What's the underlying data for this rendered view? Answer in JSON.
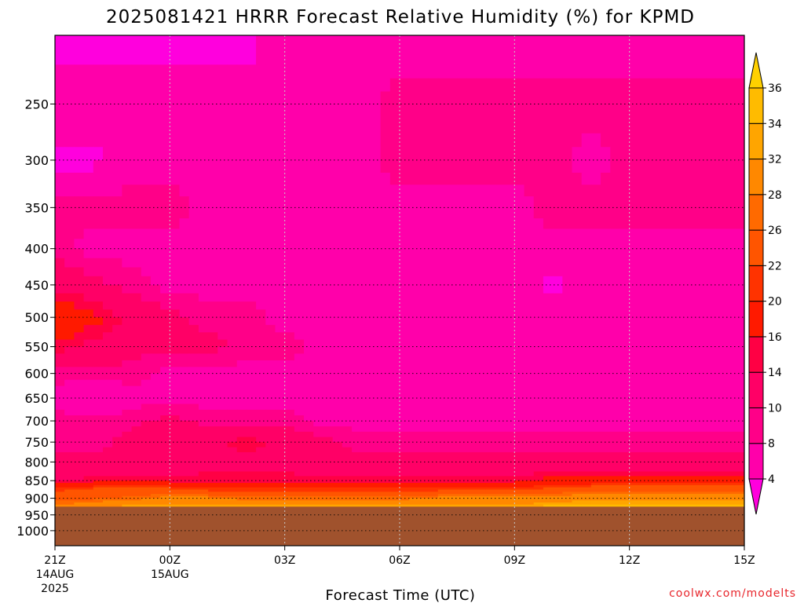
{
  "chart_data": {
    "type": "heatmap",
    "title": "2025081421 HRRR Forecast Relative Humidity (%) for KPMD",
    "xlabel": "Forecast Time (UTC)",
    "ylabel": "",
    "y_axis": {
      "scale": "log",
      "reversed": true,
      "range": [
        1050,
        200
      ],
      "ticks": [
        250,
        300,
        350,
        400,
        450,
        500,
        550,
        600,
        650,
        700,
        750,
        800,
        850,
        900,
        950,
        1000
      ]
    },
    "x_axis": {
      "range": [
        0,
        18
      ],
      "ticks": [
        {
          "x": 0,
          "label": "21Z",
          "label2": "14AUG",
          "label3": "2025"
        },
        {
          "x": 3,
          "label": "00Z",
          "label2": "15AUG",
          "label3": ""
        },
        {
          "x": 6,
          "label": "03Z",
          "label2": "",
          "label3": ""
        },
        {
          "x": 9,
          "label": "06Z",
          "label2": "",
          "label3": ""
        },
        {
          "x": 12,
          "label": "09Z",
          "label2": "",
          "label3": ""
        },
        {
          "x": 15,
          "label": "12Z",
          "label2": "",
          "label3": ""
        },
        {
          "x": 18,
          "label": "15Z",
          "label2": "",
          "label3": ""
        }
      ]
    },
    "grid": "dotted",
    "underground_below_hpa": 925,
    "underground_color": "#a0522d",
    "colorbar": {
      "levels": [
        4,
        8,
        10,
        14,
        16,
        20,
        22,
        26,
        28,
        32,
        34,
        36
      ],
      "colors": [
        "#ff00dd",
        "#ff00aa",
        "#ff0088",
        "#ff0066",
        "#ff0044",
        "#ff1a00",
        "#ff3300",
        "#ff5500",
        "#ff6a00",
        "#ff8800",
        "#ffa500",
        "#ffbb00",
        "#ffd000"
      ],
      "extend": "both"
    },
    "field": {
      "forecast_hours": [
        0,
        1,
        2,
        3,
        4,
        5,
        6,
        7,
        8,
        9,
        10,
        11,
        12,
        13,
        14,
        15,
        16,
        17,
        18
      ],
      "pressure_levels": [
        210,
        250,
        300,
        350,
        400,
        450,
        500,
        550,
        600,
        650,
        700,
        750,
        800,
        850,
        875,
        900,
        925
      ],
      "rh": [
        [
          3,
          3,
          3,
          3,
          3,
          3,
          7,
          7,
          7,
          7,
          7,
          7,
          7,
          7,
          7,
          7,
          7,
          7,
          7
        ],
        [
          7,
          7,
          7,
          7,
          7,
          7,
          7,
          7,
          7,
          9,
          9,
          9,
          9,
          9,
          9,
          9,
          9,
          9,
          9
        ],
        [
          3,
          3,
          7,
          7,
          7,
          7,
          7,
          7,
          7,
          9,
          9,
          9,
          9,
          9,
          7,
          9,
          9,
          9,
          9
        ],
        [
          9,
          9,
          9,
          9,
          7,
          7,
          7,
          7,
          7,
          7,
          7,
          7,
          7,
          9,
          9,
          9,
          9,
          9,
          9
        ],
        [
          9,
          7,
          7,
          7,
          7,
          7,
          7,
          7,
          7,
          7,
          7,
          7,
          7,
          7,
          7,
          7,
          7,
          7,
          7
        ],
        [
          13,
          11,
          9,
          7,
          7,
          7,
          7,
          7,
          7,
          7,
          7,
          7,
          7,
          3,
          7,
          7,
          7,
          7,
          7
        ],
        [
          21,
          17,
          13,
          11,
          9,
          9,
          7,
          7,
          7,
          7,
          7,
          7,
          7,
          7,
          7,
          7,
          7,
          7,
          7
        ],
        [
          15,
          13,
          11,
          11,
          11,
          9,
          9,
          7,
          7,
          7,
          7,
          7,
          7,
          7,
          7,
          7,
          7,
          7,
          7
        ],
        [
          9,
          9,
          9,
          7,
          7,
          7,
          7,
          7,
          7,
          7,
          7,
          7,
          7,
          7,
          7,
          7,
          7,
          7,
          7
        ],
        [
          7,
          3,
          7,
          7,
          7,
          7,
          7,
          7,
          7,
          7,
          7,
          7,
          7,
          7,
          7,
          7,
          7,
          7,
          7
        ],
        [
          9,
          9,
          9,
          11,
          9,
          9,
          9,
          7,
          7,
          7,
          7,
          7,
          7,
          7,
          7,
          7,
          7,
          7,
          7
        ],
        [
          9,
          9,
          11,
          13,
          13,
          15,
          13,
          11,
          9,
          9,
          9,
          9,
          9,
          9,
          9,
          9,
          9,
          9,
          9
        ],
        [
          11,
          11,
          11,
          11,
          13,
          13,
          13,
          11,
          11,
          11,
          11,
          11,
          11,
          11,
          11,
          11,
          11,
          11,
          11
        ],
        [
          13,
          15,
          15,
          15,
          15,
          15,
          15,
          15,
          15,
          15,
          15,
          15,
          15,
          17,
          17,
          17,
          17,
          17,
          17
        ],
        [
          21,
          23,
          23,
          23,
          21,
          21,
          21,
          21,
          21,
          21,
          21,
          21,
          21,
          23,
          25,
          25,
          25,
          25,
          25
        ],
        [
          25,
          25,
          27,
          29,
          29,
          27,
          27,
          27,
          27,
          27,
          29,
          29,
          29,
          29,
          31,
          31,
          31,
          31,
          31
        ],
        [
          29,
          31,
          33,
          33,
          33,
          33,
          33,
          33,
          33,
          33,
          33,
          33,
          33,
          35,
          35,
          35,
          35,
          35,
          35
        ]
      ]
    }
  },
  "credit": "coolwx.com/modelts"
}
